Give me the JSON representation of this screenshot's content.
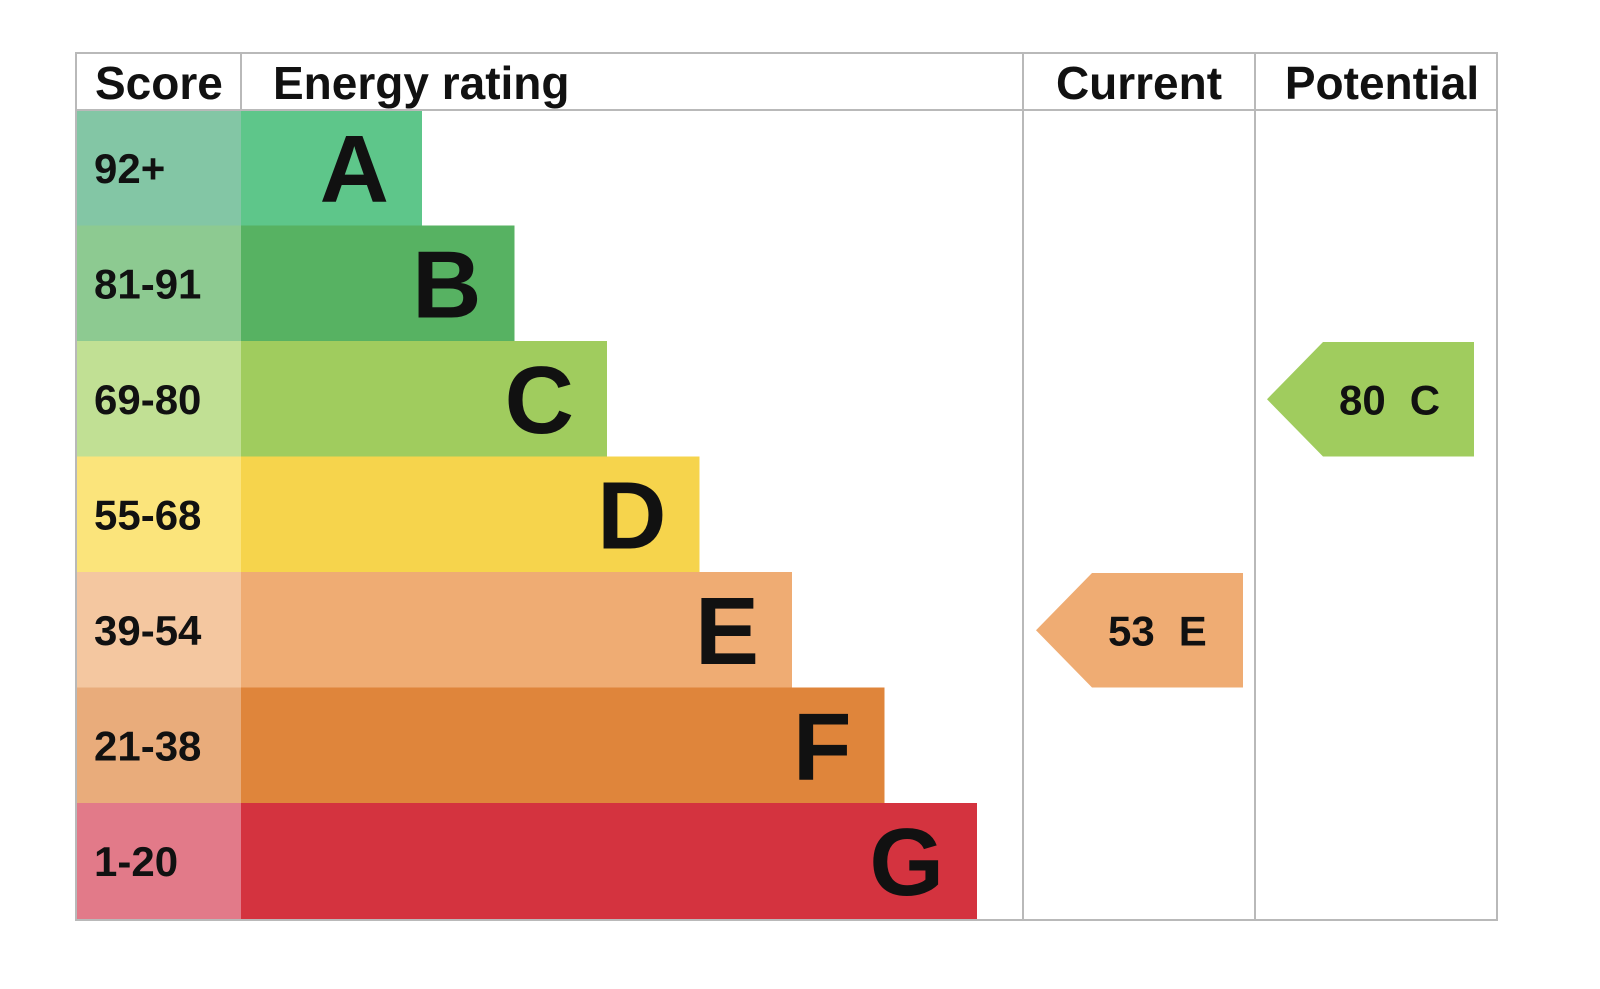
{
  "chart_data": {
    "type": "bar",
    "headers": {
      "score": "Score",
      "rating": "Energy rating",
      "current": "Current",
      "potential": "Potential"
    },
    "bands": [
      {
        "letter": "A",
        "range": "92+",
        "min": 92,
        "max": 100,
        "color": "#5ec68a",
        "score_color": "#83c6a5"
      },
      {
        "letter": "B",
        "range": "81-91",
        "min": 81,
        "max": 91,
        "color": "#57b262",
        "score_color": "#8dca91"
      },
      {
        "letter": "C",
        "range": "69-80",
        "min": 69,
        "max": 80,
        "color": "#a0cc5e",
        "score_color": "#c1e094"
      },
      {
        "letter": "D",
        "range": "55-68",
        "min": 55,
        "max": 68,
        "color": "#f6d44c",
        "score_color": "#fbe47b"
      },
      {
        "letter": "E",
        "range": "39-54",
        "min": 39,
        "max": 54,
        "color": "#efac73",
        "score_color": "#f4c7a0"
      },
      {
        "letter": "F",
        "range": "21-38",
        "min": 21,
        "max": 38,
        "color": "#df853b",
        "score_color": "#e9ac7b"
      },
      {
        "letter": "G",
        "range": "1-20",
        "min": 1,
        "max": 20,
        "color": "#d4333f",
        "score_color": "#e27a89"
      }
    ],
    "current": {
      "value": "53",
      "band": "E",
      "color": "#efac73"
    },
    "potential": {
      "value": "80",
      "band": "C",
      "color": "#a0cc5e"
    }
  }
}
